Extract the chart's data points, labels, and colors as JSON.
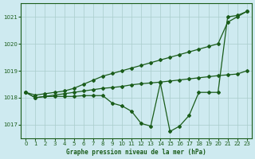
{
  "background_color": "#ceeaf0",
  "grid_color": "#aacccc",
  "line_color": "#1a5c1a",
  "title": "Graphe pression niveau de la mer (hPa)",
  "xlim": [
    -0.5,
    23.5
  ],
  "ylim": [
    1016.5,
    1021.5
  ],
  "yticks": [
    1017,
    1018,
    1019,
    1020,
    1021
  ],
  "xticks": [
    0,
    1,
    2,
    3,
    4,
    5,
    6,
    7,
    8,
    9,
    10,
    11,
    12,
    13,
    14,
    15,
    16,
    17,
    18,
    19,
    20,
    21,
    22,
    23
  ],
  "line1_x": [
    0,
    1,
    2,
    3,
    4,
    5,
    6,
    7,
    8,
    9,
    10,
    11,
    12,
    13,
    14,
    15,
    16,
    17,
    18,
    19,
    20,
    21,
    22,
    23
  ],
  "line1_y": [
    1018.2,
    1018.1,
    1018.15,
    1018.2,
    1018.25,
    1018.35,
    1018.5,
    1018.65,
    1018.8,
    1018.9,
    1019.0,
    1019.1,
    1019.2,
    1019.3,
    1019.4,
    1019.5,
    1019.6,
    1019.7,
    1019.8,
    1019.9,
    1020.0,
    1020.8,
    1021.0,
    1021.2
  ],
  "line2_x": [
    0,
    1,
    2,
    3,
    4,
    5,
    6,
    7,
    8,
    9,
    10,
    11,
    12,
    13,
    14,
    15,
    16,
    17,
    18,
    19,
    20,
    21,
    22,
    23
  ],
  "line2_y": [
    1018.2,
    1018.0,
    1018.05,
    1018.1,
    1018.15,
    1018.2,
    1018.25,
    1018.3,
    1018.35,
    1018.38,
    1018.42,
    1018.48,
    1018.52,
    1018.55,
    1018.58,
    1018.62,
    1018.66,
    1018.7,
    1018.74,
    1018.78,
    1018.82,
    1018.85,
    1018.88,
    1019.0
  ],
  "line3_x": [
    0,
    1,
    2,
    3,
    4,
    5,
    6,
    7,
    8,
    9,
    10,
    11,
    12,
    13,
    14,
    15,
    16,
    17,
    18,
    19,
    20,
    21,
    22,
    23
  ],
  "line3_y": [
    1018.2,
    1018.0,
    1018.05,
    1018.05,
    1018.05,
    1018.05,
    1018.08,
    1018.08,
    1018.08,
    1017.8,
    1017.7,
    1017.5,
    1017.05,
    1016.95,
    1018.55,
    1016.75,
    1016.95,
    1017.35,
    1018.2,
    1018.2,
    1018.2,
    1021.0,
    1021.05,
    1021.2
  ]
}
